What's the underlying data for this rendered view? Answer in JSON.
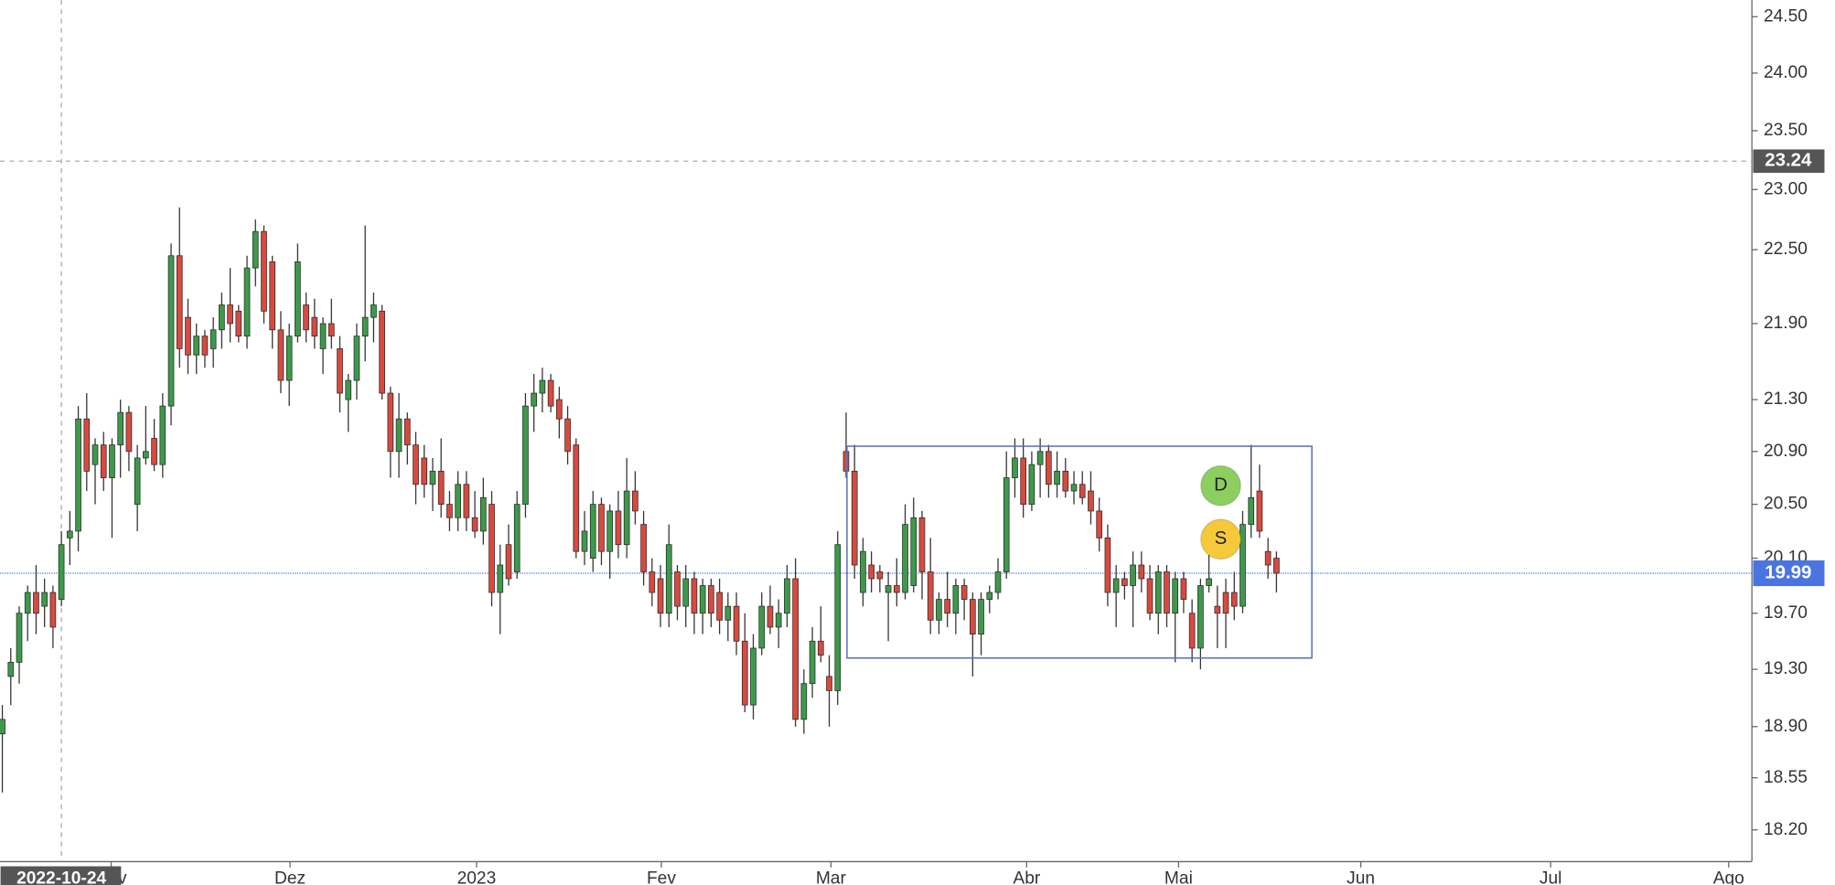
{
  "chart_data": {
    "type": "candlestick",
    "log_scale": true,
    "colors": {
      "up": "#3d9a4a",
      "down": "#d84a3f",
      "wick": "#333333"
    },
    "ohlc": [
      [
        18.85,
        19.05,
        18.45,
        18.95
      ],
      [
        19.25,
        19.45,
        19.05,
        19.35
      ],
      [
        19.35,
        19.75,
        19.2,
        19.7
      ],
      [
        19.7,
        19.9,
        19.5,
        19.85
      ],
      [
        19.85,
        20.05,
        19.55,
        19.7
      ],
      [
        19.75,
        19.95,
        19.6,
        19.85
      ],
      [
        19.85,
        19.9,
        19.45,
        19.6
      ],
      [
        19.8,
        20.3,
        19.75,
        20.2
      ],
      [
        20.25,
        20.45,
        20.05,
        20.3
      ],
      [
        20.3,
        21.25,
        20.15,
        21.15
      ],
      [
        21.15,
        21.35,
        20.6,
        20.75
      ],
      [
        20.8,
        21.0,
        20.5,
        20.95
      ],
      [
        20.95,
        21.05,
        20.6,
        20.7
      ],
      [
        20.7,
        21.0,
        20.25,
        20.95
      ],
      [
        20.95,
        21.3,
        20.7,
        21.2
      ],
      [
        21.2,
        21.25,
        20.75,
        20.9
      ],
      [
        20.5,
        20.95,
        20.3,
        20.85
      ],
      [
        20.85,
        21.25,
        20.8,
        20.9
      ],
      [
        21.0,
        21.15,
        20.75,
        20.8
      ],
      [
        20.8,
        21.35,
        20.7,
        21.25
      ],
      [
        21.25,
        22.55,
        21.1,
        22.45
      ],
      [
        22.45,
        22.85,
        21.55,
        21.7
      ],
      [
        21.95,
        22.1,
        21.5,
        21.65
      ],
      [
        21.65,
        21.9,
        21.5,
        21.8
      ],
      [
        21.8,
        21.85,
        21.55,
        21.65
      ],
      [
        21.7,
        21.95,
        21.55,
        21.85
      ],
      [
        21.85,
        22.15,
        21.7,
        22.05
      ],
      [
        22.05,
        22.35,
        21.75,
        21.9
      ],
      [
        22.0,
        22.05,
        21.75,
        21.8
      ],
      [
        21.8,
        22.45,
        21.7,
        22.35
      ],
      [
        22.35,
        22.75,
        22.2,
        22.65
      ],
      [
        22.65,
        22.7,
        21.9,
        22.0
      ],
      [
        22.4,
        22.45,
        21.7,
        21.85
      ],
      [
        21.85,
        22.0,
        21.35,
        21.45
      ],
      [
        21.45,
        21.9,
        21.25,
        21.8
      ],
      [
        21.8,
        22.55,
        21.75,
        22.4
      ],
      [
        22.05,
        22.15,
        21.75,
        21.85
      ],
      [
        21.95,
        22.1,
        21.7,
        21.8
      ],
      [
        21.7,
        21.95,
        21.5,
        21.9
      ],
      [
        21.9,
        22.1,
        21.7,
        21.8
      ],
      [
        21.7,
        21.8,
        21.2,
        21.35
      ],
      [
        21.3,
        21.5,
        21.05,
        21.45
      ],
      [
        21.45,
        21.9,
        21.3,
        21.8
      ],
      [
        21.8,
        22.7,
        21.6,
        21.95
      ],
      [
        21.95,
        22.15,
        21.75,
        22.05
      ],
      [
        22.0,
        22.05,
        21.3,
        21.35
      ],
      [
        21.35,
        21.4,
        20.7,
        20.9
      ],
      [
        20.9,
        21.35,
        20.7,
        21.15
      ],
      [
        21.15,
        21.2,
        20.8,
        20.95
      ],
      [
        20.95,
        21.05,
        20.5,
        20.65
      ],
      [
        20.85,
        20.95,
        20.55,
        20.65
      ],
      [
        20.65,
        20.85,
        20.45,
        20.75
      ],
      [
        20.75,
        21.0,
        20.4,
        20.5
      ],
      [
        20.5,
        20.6,
        20.3,
        20.4
      ],
      [
        20.4,
        20.75,
        20.3,
        20.65
      ],
      [
        20.65,
        20.75,
        20.3,
        20.4
      ],
      [
        20.4,
        20.6,
        20.25,
        20.3
      ],
      [
        20.3,
        20.7,
        20.2,
        20.55
      ],
      [
        20.5,
        20.6,
        19.75,
        19.85
      ],
      [
        19.85,
        20.2,
        19.55,
        20.05
      ],
      [
        20.2,
        20.35,
        19.9,
        19.95
      ],
      [
        20.0,
        20.6,
        19.95,
        20.5
      ],
      [
        20.5,
        21.35,
        20.4,
        21.25
      ],
      [
        21.25,
        21.5,
        21.05,
        21.35
      ],
      [
        21.35,
        21.55,
        21.2,
        21.45
      ],
      [
        21.45,
        21.5,
        21.2,
        21.25
      ],
      [
        21.3,
        21.4,
        21.0,
        21.15
      ],
      [
        21.15,
        21.25,
        20.8,
        20.9
      ],
      [
        20.95,
        21.0,
        20.1,
        20.15
      ],
      [
        20.15,
        20.45,
        20.05,
        20.3
      ],
      [
        20.1,
        20.6,
        20.0,
        20.5
      ],
      [
        20.5,
        20.55,
        20.05,
        20.15
      ],
      [
        20.15,
        20.5,
        19.95,
        20.45
      ],
      [
        20.45,
        20.6,
        20.1,
        20.2
      ],
      [
        20.2,
        20.85,
        20.1,
        20.6
      ],
      [
        20.6,
        20.75,
        20.35,
        20.45
      ],
      [
        20.35,
        20.45,
        19.9,
        20.0
      ],
      [
        20.0,
        20.1,
        19.75,
        19.85
      ],
      [
        19.95,
        20.05,
        19.6,
        19.7
      ],
      [
        19.7,
        20.35,
        19.6,
        20.2
      ],
      [
        20.0,
        20.05,
        19.65,
        19.75
      ],
      [
        19.75,
        20.05,
        19.6,
        19.95
      ],
      [
        19.95,
        20.0,
        19.55,
        19.7
      ],
      [
        19.7,
        19.95,
        19.55,
        19.9
      ],
      [
        19.9,
        19.95,
        19.6,
        19.7
      ],
      [
        19.85,
        19.95,
        19.55,
        19.65
      ],
      [
        19.65,
        19.85,
        19.5,
        19.75
      ],
      [
        19.75,
        19.85,
        19.4,
        19.5
      ],
      [
        19.5,
        19.7,
        19.0,
        19.05
      ],
      [
        19.05,
        19.55,
        18.95,
        19.45
      ],
      [
        19.45,
        19.85,
        19.4,
        19.75
      ],
      [
        19.75,
        19.9,
        19.55,
        19.6
      ],
      [
        19.6,
        19.8,
        19.45,
        19.7
      ],
      [
        19.7,
        20.05,
        19.6,
        19.95
      ],
      [
        19.95,
        20.1,
        18.9,
        18.95
      ],
      [
        18.95,
        19.3,
        18.85,
        19.2
      ],
      [
        19.2,
        19.6,
        19.1,
        19.5
      ],
      [
        19.5,
        19.75,
        19.35,
        19.4
      ],
      [
        19.25,
        19.4,
        18.9,
        19.15
      ],
      [
        19.15,
        20.3,
        19.05,
        20.2
      ],
      [
        20.9,
        21.2,
        20.7,
        20.75
      ],
      [
        20.75,
        20.95,
        19.95,
        20.05
      ],
      [
        19.85,
        20.25,
        19.75,
        20.15
      ],
      [
        20.05,
        20.15,
        19.85,
        19.95
      ],
      [
        20.0,
        20.05,
        19.85,
        19.95
      ],
      [
        19.85,
        20.0,
        19.5,
        19.9
      ],
      [
        19.9,
        20.1,
        19.75,
        19.85
      ],
      [
        19.85,
        20.5,
        19.8,
        20.35
      ],
      [
        19.9,
        20.55,
        19.85,
        20.4
      ],
      [
        20.4,
        20.45,
        19.8,
        20.0
      ],
      [
        20.0,
        20.25,
        19.55,
        19.65
      ],
      [
        19.65,
        19.85,
        19.55,
        19.8
      ],
      [
        19.8,
        20.0,
        19.6,
        19.7
      ],
      [
        19.7,
        19.95,
        19.55,
        19.9
      ],
      [
        19.9,
        19.95,
        19.65,
        19.8
      ],
      [
        19.8,
        19.85,
        19.25,
        19.55
      ],
      [
        19.55,
        19.85,
        19.4,
        19.8
      ],
      [
        19.8,
        19.9,
        19.7,
        19.85
      ],
      [
        19.85,
        20.1,
        19.8,
        20.0
      ],
      [
        20.0,
        20.9,
        19.95,
        20.7
      ],
      [
        20.7,
        21.0,
        20.55,
        20.85
      ],
      [
        20.85,
        21.0,
        20.4,
        20.5
      ],
      [
        20.5,
        20.9,
        20.45,
        20.8
      ],
      [
        20.8,
        21.0,
        20.55,
        20.9
      ],
      [
        20.9,
        20.95,
        20.55,
        20.65
      ],
      [
        20.65,
        20.9,
        20.55,
        20.75
      ],
      [
        20.75,
        20.85,
        20.55,
        20.6
      ],
      [
        20.6,
        20.75,
        20.5,
        20.65
      ],
      [
        20.65,
        20.75,
        20.5,
        20.55
      ],
      [
        20.6,
        20.75,
        20.35,
        20.45
      ],
      [
        20.45,
        20.55,
        20.15,
        20.25
      ],
      [
        20.25,
        20.35,
        19.75,
        19.85
      ],
      [
        19.85,
        20.05,
        19.6,
        19.95
      ],
      [
        19.95,
        20.0,
        19.8,
        19.9
      ],
      [
        19.9,
        20.15,
        19.6,
        20.05
      ],
      [
        20.05,
        20.15,
        19.85,
        19.95
      ],
      [
        19.95,
        20.05,
        19.65,
        19.7
      ],
      [
        19.7,
        20.05,
        19.55,
        20.0
      ],
      [
        20.0,
        20.05,
        19.6,
        19.7
      ],
      [
        19.7,
        20.0,
        19.35,
        19.95
      ],
      [
        19.95,
        20.0,
        19.7,
        19.8
      ],
      [
        19.7,
        19.8,
        19.35,
        19.45
      ],
      [
        19.45,
        19.95,
        19.3,
        19.9
      ],
      [
        19.9,
        20.25,
        19.85,
        19.95
      ],
      [
        19.75,
        19.9,
        19.45,
        19.7
      ],
      [
        19.85,
        19.95,
        19.45,
        19.7
      ],
      [
        19.85,
        20.0,
        19.65,
        19.75
      ],
      [
        19.75,
        20.45,
        19.7,
        20.35
      ],
      [
        20.35,
        20.95,
        20.25,
        20.55
      ],
      [
        20.6,
        20.8,
        20.25,
        20.3
      ],
      [
        20.15,
        20.25,
        19.95,
        20.05
      ],
      [
        20.1,
        20.15,
        19.85,
        19.99
      ]
    ],
    "xlim": [
      -0.277,
      207.35
    ],
    "xticks": [
      {
        "value": 12.9,
        "label": "Nov"
      },
      {
        "value": 34.1,
        "label": "Dez"
      },
      {
        "value": 56.2,
        "label": "2023"
      },
      {
        "value": 78.1,
        "label": "Fev"
      },
      {
        "value": 98.2,
        "label": "Mar"
      },
      {
        "value": 121.4,
        "label": "Abr"
      },
      {
        "value": 139.4,
        "label": "Mai"
      },
      {
        "value": 161.0,
        "label": "Jun"
      },
      {
        "value": 183.5,
        "label": "Jul"
      },
      {
        "value": 204.6,
        "label": "Ago"
      }
    ],
    "ylim": [
      17.99,
      24.65
    ],
    "yticks": [
      {
        "value": 18.2,
        "label": "18.20"
      },
      18.55,
      {
        "value": 18.9,
        "label": "18.90"
      },
      {
        "value": 19.3,
        "label": "19.30"
      },
      {
        "value": 19.7,
        "label": "19.70"
      },
      {
        "value": 20.1,
        "label": "20.10"
      },
      {
        "value": 20.5,
        "label": "20.50"
      },
      {
        "value": 20.9,
        "label": "20.90"
      },
      {
        "value": 21.3,
        "label": "21.30"
      },
      {
        "value": 21.9,
        "label": "21.90"
      },
      {
        "value": 22.5,
        "label": "22.50"
      },
      {
        "value": 23,
        "label": "23.00"
      },
      {
        "value": 23.5,
        "label": "23.50"
      },
      {
        "value": 24,
        "label": "24.00"
      },
      {
        "value": 24.5,
        "label": "24.50"
      }
    ],
    "crosshair": {
      "x": 7,
      "x_label": "2022-10-24",
      "y": 23.24
    },
    "last_price": 19.99,
    "last_price_color": "#4a74e0",
    "rectangle": {
      "x": [
        100.1,
        155.2
      ],
      "y": [
        19.38,
        20.94
      ],
      "color": "#5b6fbf"
    },
    "annotations": [
      {
        "text": "D",
        "x": 144.4,
        "y": 20.64,
        "color": "#8ccf5e"
      },
      {
        "text": "S",
        "x": 144.4,
        "y": 20.24,
        "color": "#f5c93a"
      }
    ]
  }
}
